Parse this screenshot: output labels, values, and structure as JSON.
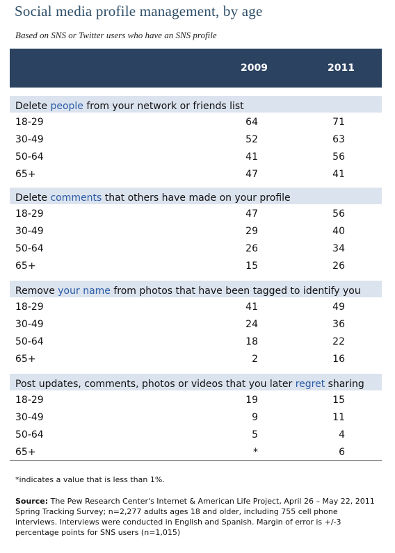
{
  "chart_data": {
    "type": "table",
    "title": "Social media profile management, by age",
    "subtitle": "Based on SNS or Twitter users who have an SNS profile",
    "columns": [
      "2009",
      "2011"
    ],
    "sections": [
      {
        "label_pre": "Delete ",
        "label_hl": "people",
        "label_post": " from your network or friends list",
        "rows": [
          {
            "age": "18-29",
            "v2009": "64",
            "v2011": "71"
          },
          {
            "age": "30-49",
            "v2009": "52",
            "v2011": "63"
          },
          {
            "age": "50-64",
            "v2009": "41",
            "v2011": "56"
          },
          {
            "age": "65+",
            "v2009": "47",
            "v2011": "41"
          }
        ]
      },
      {
        "label_pre": "Delete ",
        "label_hl": "comments",
        "label_post": " that others have made on your profile",
        "rows": [
          {
            "age": "18-29",
            "v2009": "47",
            "v2011": "56"
          },
          {
            "age": "30-49",
            "v2009": "29",
            "v2011": "40"
          },
          {
            "age": "50-64",
            "v2009": "26",
            "v2011": "34"
          },
          {
            "age": "65+",
            "v2009": "15",
            "v2011": "26"
          }
        ]
      },
      {
        "label_pre": "Remove ",
        "label_hl": "your name",
        "label_post": " from photos that have been tagged to identify you",
        "rows": [
          {
            "age": "18-29",
            "v2009": "41",
            "v2011": "49"
          },
          {
            "age": "30-49",
            "v2009": "24",
            "v2011": "36"
          },
          {
            "age": "50-64",
            "v2009": "18",
            "v2011": "22"
          },
          {
            "age": "65+",
            "v2009": "2",
            "v2011": "16"
          }
        ]
      },
      {
        "label_pre": "Post updates, comments, photos or videos that you later ",
        "label_hl": "regret",
        "label_post": " sharing",
        "rows": [
          {
            "age": "18-29",
            "v2009": "19",
            "v2011": "15"
          },
          {
            "age": "30-49",
            "v2009": "9",
            "v2011": "11"
          },
          {
            "age": "50-64",
            "v2009": "5",
            "v2011": "4"
          },
          {
            "age": "65+",
            "v2009": "*",
            "v2011": "6"
          }
        ]
      }
    ]
  },
  "footnote": "*indicates a value that is less than 1%.",
  "source_label": "Source:",
  "source_text": " The Pew Research Center's Internet & American Life Project, April 26 – May 22, 2011 Spring Tracking Survey; n=2,277 adults ages 18 and older, including 755 cell phone interviews. Interviews were conducted in English and Spanish. Margin of error is +/-3 percentage points for SNS users (n=1,015)"
}
